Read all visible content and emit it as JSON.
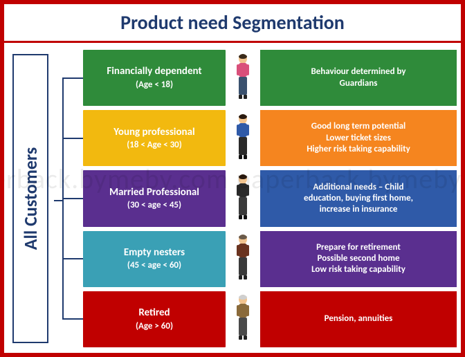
{
  "title": "Product need Segmentation",
  "title_color": "#1f3a6e",
  "title_fontsize": 28,
  "frame_border_color": "#c00000",
  "background_color": "#ffffff",
  "root": {
    "label": "All Customers",
    "border_color": "#1f3a6e",
    "text_color": "#1f3a6e",
    "fontsize": 26
  },
  "connector_color": "#1f3a6e",
  "segments": [
    {
      "title": "Financially dependent",
      "subtitle": "(Age < 18)",
      "seg_bg": "#2f8b3a",
      "detail_bg": "#2f8b3a",
      "details": [
        "Behaviour determined by",
        "Guardians"
      ],
      "persona_colors": {
        "skin": "#f1c38e",
        "hair": "#3a2a1a",
        "top": "#d94f7a",
        "bottom": "#3a516e",
        "shoe": "#222222"
      }
    },
    {
      "title": "Young professional",
      "subtitle": "(18 < Age < 30)",
      "seg_bg": "#f2b90f",
      "detail_bg": "#f5851f",
      "details": [
        "Good long term potential",
        "Lower ticket sizes",
        "Higher risk taking capability"
      ],
      "persona_colors": {
        "skin": "#f1c38e",
        "hair": "#2a1a0f",
        "top": "#2f5aa8",
        "bottom": "#2a2a2a",
        "shoe": "#111111"
      }
    },
    {
      "title": "Married Professional",
      "subtitle": "(30 < age < 45)",
      "seg_bg": "#5a2f8f",
      "detail_bg": "#2f5aa8",
      "details": [
        "Additional needs – Child",
        "education, buying first home,",
        "increase in insurance"
      ],
      "persona_colors": {
        "skin": "#f1c38e",
        "hair": "#2a1a0f",
        "top": "#2a2a2a",
        "bottom": "#3a3a3a",
        "shoe": "#111111"
      }
    },
    {
      "title": "Empty nesters",
      "subtitle": "(45 < age < 60)",
      "seg_bg": "#3aa0b5",
      "detail_bg": "#5a2f8f",
      "details": [
        "Prepare for retirement",
        "Possible second home",
        "Low risk taking capability"
      ],
      "persona_colors": {
        "skin": "#f1c38e",
        "hair": "#6a5a4a",
        "top": "#6a331f",
        "bottom": "#3a3a3a",
        "shoe": "#222222"
      }
    },
    {
      "title": "Retired",
      "subtitle": "(Age > 60)",
      "seg_bg": "#c00000",
      "detail_bg": "#c00000",
      "details": [
        "Pension, annuities"
      ],
      "persona_colors": {
        "skin": "#f1c38e",
        "hair": "#cfcfcf",
        "top": "#8a6a3a",
        "bottom": "#4a4a4a",
        "shoe": "#222222"
      }
    }
  ],
  "watermark_text": "paperback.bymeby.com   paperback.bymeby.com"
}
